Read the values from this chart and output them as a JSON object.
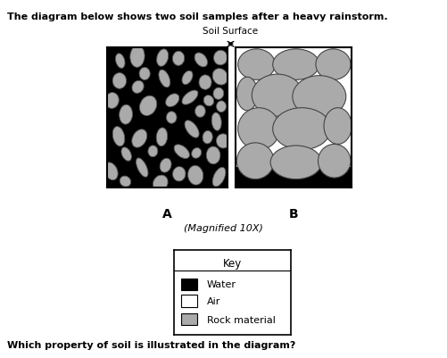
{
  "title_text": "The diagram below shows two soil samples after a heavy rainstorm.",
  "soil_surface_label": "Soil Surface",
  "label_A": "A",
  "label_B": "B",
  "magnified_label": "(Magnified 10X)",
  "question_text": "Which property of soil is illustrated in the diagram?",
  "key_title": "Key",
  "key_items": [
    "Water",
    "Air",
    "Rock material"
  ],
  "key_colors": [
    "#000000",
    "#ffffff",
    "#aaaaaa"
  ],
  "bg_color": "#ffffff",
  "rock_color_A": "#aaaaaa",
  "water_color_A": "#000000",
  "rock_color_B": "#aaaaaa",
  "air_color_B": "#ffffff",
  "water_color_B": "#000000",
  "box_edge_color": "#000000",
  "rocks_B": [
    [
      0.18,
      0.88,
      0.16,
      0.11,
      0
    ],
    [
      0.52,
      0.88,
      0.2,
      0.11,
      0
    ],
    [
      0.84,
      0.88,
      0.15,
      0.11,
      0
    ],
    [
      0.1,
      0.67,
      0.09,
      0.12,
      0
    ],
    [
      0.36,
      0.66,
      0.22,
      0.15,
      0
    ],
    [
      0.72,
      0.65,
      0.23,
      0.15,
      0
    ],
    [
      0.2,
      0.42,
      0.18,
      0.15,
      0
    ],
    [
      0.57,
      0.42,
      0.25,
      0.15,
      0
    ],
    [
      0.88,
      0.44,
      0.12,
      0.13,
      0
    ],
    [
      0.17,
      0.19,
      0.16,
      0.13,
      0
    ],
    [
      0.52,
      0.18,
      0.22,
      0.12,
      0
    ],
    [
      0.85,
      0.19,
      0.14,
      0.12,
      0
    ]
  ]
}
